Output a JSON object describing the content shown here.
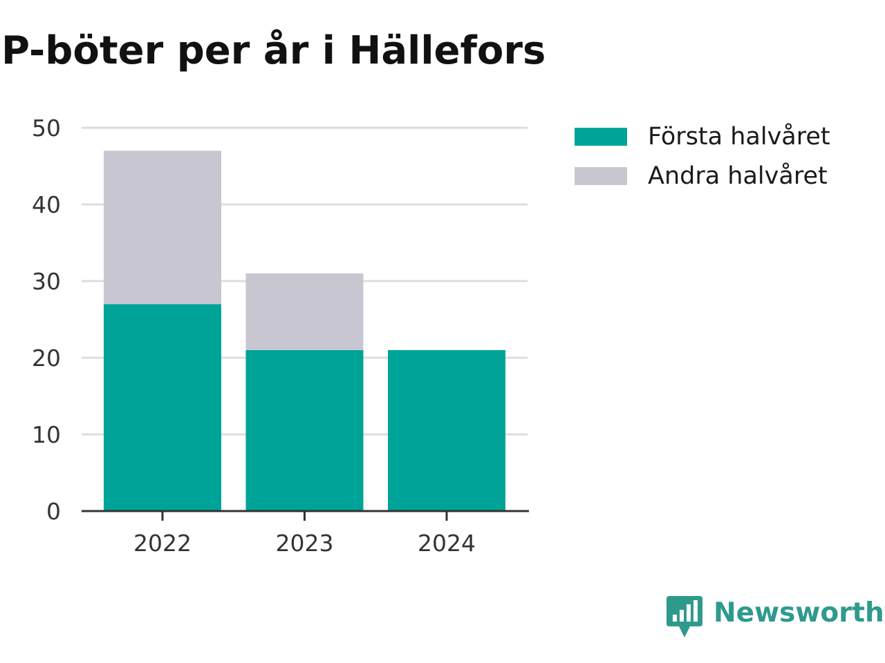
{
  "chart_data": {
    "type": "bar",
    "stacked": true,
    "title": "P-böter per år i Hällefors",
    "xlabel": "",
    "ylabel": "",
    "categories": [
      "2022",
      "2023",
      "2024"
    ],
    "series": [
      {
        "name": "Första halvåret",
        "values": [
          27,
          21,
          21
        ],
        "color": "#00a398"
      },
      {
        "name": "Andra halvåret",
        "values": [
          20,
          10,
          0
        ],
        "color": "#c8c7d1"
      }
    ],
    "yticks": [
      "0",
      "10",
      "20",
      "30",
      "40",
      "50"
    ],
    "ylim": [
      0,
      50
    ],
    "grid": true,
    "legend_position": "right"
  },
  "brand": {
    "name": "Newsworthy",
    "icon": "newsworthy-logo-icon",
    "color": "#2e9a8d"
  }
}
